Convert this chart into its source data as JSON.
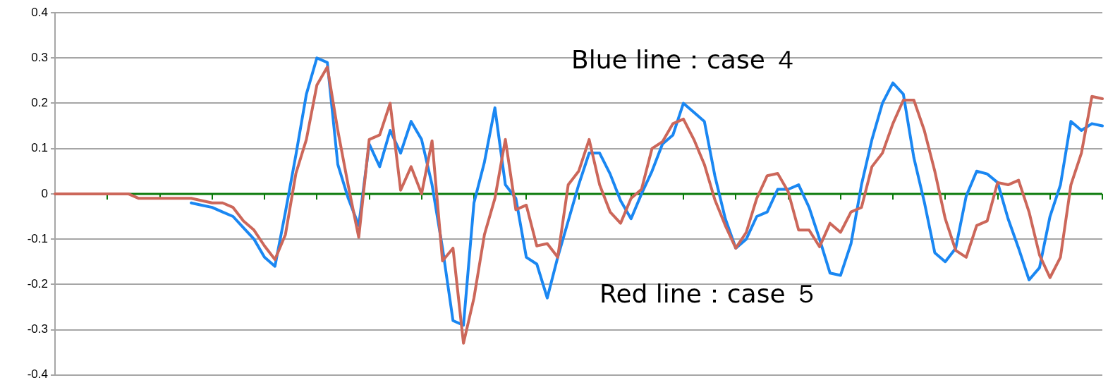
{
  "chart_data": {
    "type": "line",
    "categories": [
      null,
      null,
      null,
      null,
      null,
      null,
      null,
      null,
      null,
      null,
      null,
      null,
      null,
      null,
      null,
      null,
      null,
      null,
      null,
      null,
      null,
      null,
      null,
      null,
      null,
      null,
      null,
      null,
      null,
      null,
      null,
      null,
      null,
      null,
      null,
      null,
      null,
      null,
      null,
      null,
      null,
      null,
      null,
      null,
      null,
      null,
      null,
      null,
      null,
      null,
      null,
      null,
      null,
      null,
      null,
      null,
      null,
      null,
      null,
      null,
      null,
      null,
      null,
      null,
      null,
      null,
      null,
      null,
      null,
      null,
      null,
      null,
      null,
      null,
      null,
      null,
      null,
      null,
      null,
      null,
      null,
      null,
      null,
      null,
      null,
      null,
      null,
      null,
      null,
      null,
      null,
      null,
      null,
      null,
      null,
      null,
      null,
      null,
      null,
      null,
      null
    ],
    "series": [
      {
        "color": "#1a87f2",
        "values": [
          null,
          null,
          null,
          null,
          null,
          null,
          null,
          null,
          null,
          null,
          null,
          null,
          null,
          -0.02,
          -0.025,
          -0.03,
          -0.04,
          -0.05,
          -0.075,
          -0.1,
          -0.14,
          -0.16,
          -0.04,
          0.086,
          0.22,
          0.3,
          0.29,
          0.065,
          -0.01,
          -0.07,
          0.11,
          0.06,
          0.14,
          0.09,
          0.16,
          0.12,
          0.02,
          -0.12,
          -0.28,
          -0.29,
          -0.02,
          0.07,
          0.19,
          0.02,
          -0.01,
          -0.14,
          -0.155,
          -0.23,
          -0.14,
          -0.06,
          0.02,
          0.09,
          0.09,
          0.044,
          -0.015,
          -0.055,
          0,
          0.05,
          0.11,
          0.13,
          0.2,
          0.18,
          0.16,
          0.04,
          -0.055,
          -0.12,
          -0.1,
          -0.05,
          -0.04,
          0.01,
          0.01,
          0.02,
          -0.03,
          -0.1,
          -0.175,
          -0.18,
          -0.11,
          0.02,
          0.12,
          0.2,
          0.245,
          0.22,
          0.08,
          -0.018,
          -0.13,
          -0.15,
          -0.12,
          -0.005,
          0.05,
          0.044,
          0.025,
          -0.055,
          -0.12,
          -0.19,
          -0.163,
          -0.05,
          0.02,
          0.16,
          0.14,
          0.155,
          0.15
        ]
      },
      {
        "color": "#cc675a",
        "values": [
          0,
          0,
          0,
          0,
          0,
          0,
          0,
          0,
          -0.01,
          -0.01,
          -0.01,
          -0.01,
          -0.01,
          -0.01,
          -0.015,
          -0.02,
          -0.02,
          -0.03,
          -0.06,
          -0.08,
          -0.115,
          -0.145,
          -0.09,
          0.045,
          0.12,
          0.24,
          0.28,
          0.14,
          0.018,
          -0.096,
          0.12,
          0.13,
          0.2,
          0.008,
          0.06,
          0,
          0.117,
          -0.148,
          -0.12,
          -0.33,
          -0.23,
          -0.09,
          -0.01,
          0.12,
          -0.035,
          -0.025,
          -0.115,
          -0.11,
          -0.14,
          0.02,
          0.05,
          0.12,
          0.02,
          -0.04,
          -0.065,
          -0.01,
          0.01,
          0.1,
          0.115,
          0.155,
          0.165,
          0.12,
          0.065,
          -0.013,
          -0.07,
          -0.12,
          -0.085,
          -0.01,
          0.04,
          0.045,
          0.005,
          -0.08,
          -0.08,
          -0.117,
          -0.065,
          -0.085,
          -0.04,
          -0.03,
          0.06,
          0.09,
          0.155,
          0.207,
          0.207,
          0.14,
          0.05,
          -0.055,
          -0.125,
          -0.14,
          -0.07,
          -0.06,
          0.025,
          0.02,
          0.03,
          -0.04,
          -0.135,
          -0.185,
          -0.14,
          0.02,
          0.09,
          0.215,
          0.21
        ]
      }
    ],
    "ylim": [
      -0.4,
      0.4
    ],
    "yticks": [
      -0.4,
      -0.3,
      -0.2,
      -0.1,
      0,
      0.1,
      0.2,
      0.3,
      0.4
    ],
    "ref_lines": [
      {
        "axis": "y",
        "value": 0,
        "color": "#0a7a0a"
      }
    ],
    "grid": "y",
    "legend": false,
    "tick_labels": "y",
    "marker": "none",
    "line_style": "solid",
    "annotations": [
      "Blue line：case ４",
      "Red line：case ５"
    ]
  }
}
